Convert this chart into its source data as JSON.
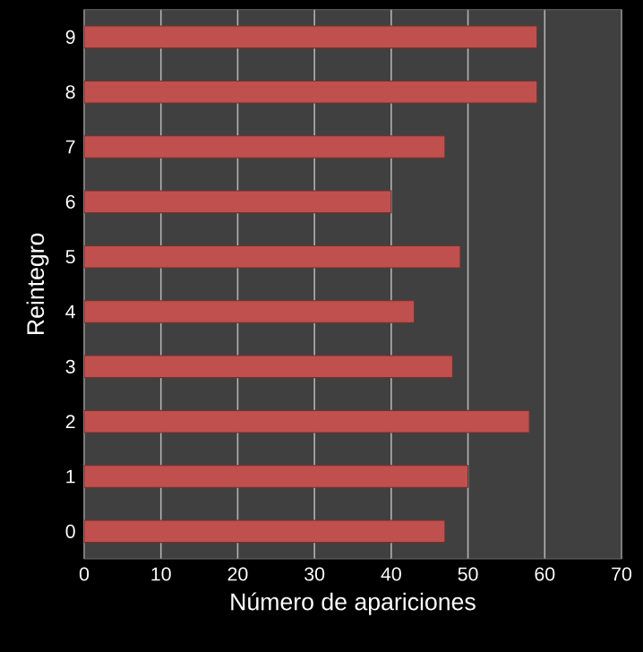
{
  "chart_data": {
    "type": "bar",
    "orientation": "horizontal",
    "xlabel": "Número de apariciones",
    "ylabel": "Reintegro",
    "categories": [
      "9",
      "8",
      "7",
      "6",
      "5",
      "4",
      "3",
      "2",
      "1",
      "0"
    ],
    "values": [
      59,
      59,
      47,
      40,
      49,
      43,
      48,
      58,
      50,
      47
    ],
    "color": "#c0504d",
    "xlim": [
      0,
      70
    ],
    "xticks": [
      0,
      10,
      20,
      30,
      40,
      50,
      60,
      70
    ],
    "grid": "x"
  }
}
